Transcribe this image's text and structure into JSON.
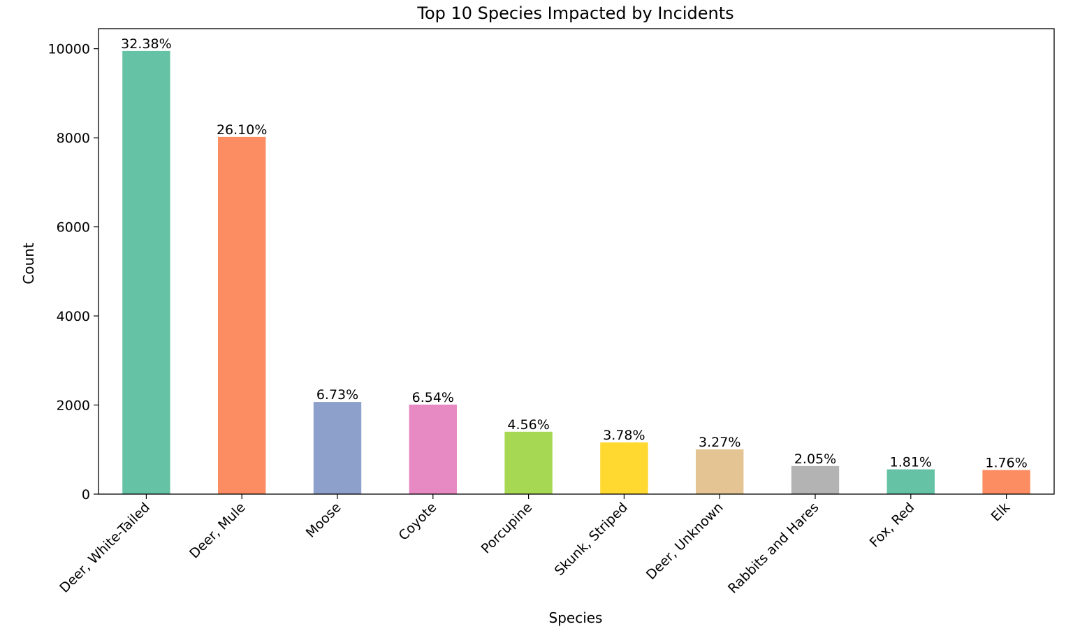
{
  "chart_data": {
    "type": "bar",
    "title": "Top 10 Species Impacted by Incidents",
    "xlabel": "Species",
    "ylabel": "Count",
    "ylim": [
      0,
      10450
    ],
    "yticks": [
      0,
      2000,
      4000,
      6000,
      8000,
      10000
    ],
    "grid": false,
    "categories": [
      "Deer, White-Tailed",
      "Deer, Mule",
      "Moose",
      "Coyote",
      "Porcupine",
      "Skunk, Striped",
      "Deer, Unknown",
      "Rabbits and Hares",
      "Fox, Red",
      "Elk"
    ],
    "values": [
      9950,
      8020,
      2070,
      2010,
      1400,
      1160,
      1005,
      630,
      556,
      541
    ],
    "data_labels": [
      "32.38%",
      "26.10%",
      "6.73%",
      "6.54%",
      "4.56%",
      "3.78%",
      "3.27%",
      "2.05%",
      "1.81%",
      "1.76%"
    ],
    "colors": [
      "#66c2a5",
      "#fc8d62",
      "#8da0cb",
      "#e78ac3",
      "#a6d854",
      "#ffd92f",
      "#e5c494",
      "#b3b3b3",
      "#66c2a5",
      "#fc8d62"
    ]
  }
}
